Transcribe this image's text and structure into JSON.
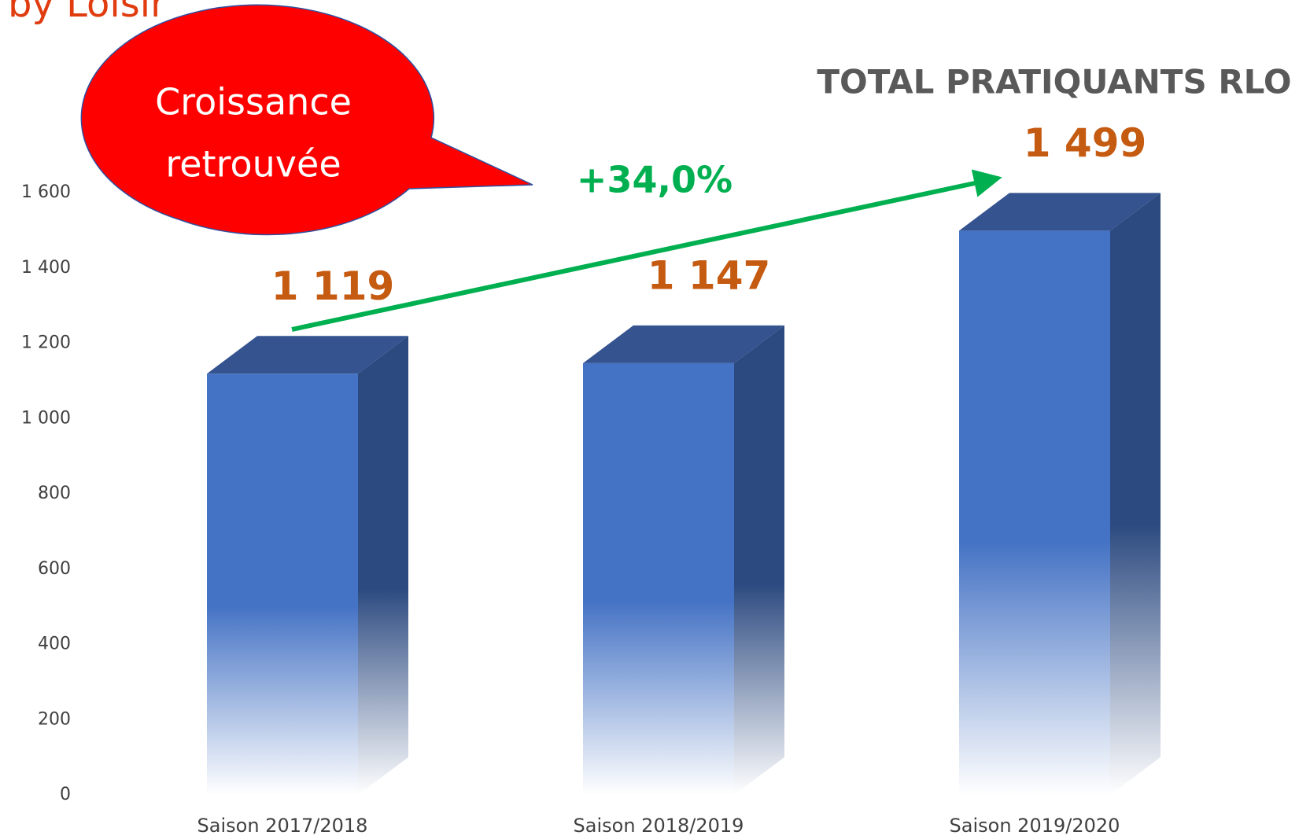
{
  "chart_data": {
    "type": "bar",
    "page_heading": "by Loisir",
    "title": "TOTAL PRATIQUANTS RLO",
    "categories": [
      "Saison 2017/2018",
      "Saison 2018/2019",
      "Saison 2019/2020"
    ],
    "values": [
      1119,
      1147,
      1499
    ],
    "value_labels": [
      "1 119",
      "1 147",
      "1 499"
    ],
    "color": "#4472c4",
    "ylim": [
      0,
      1600
    ],
    "yticks": [
      0,
      200,
      400,
      600,
      800,
      {
        "value": 1000,
        "label": "1 000"
      },
      {
        "value": 1200,
        "label": "1 200"
      },
      {
        "value": 1400,
        "label": "1 400"
      },
      {
        "value": 1600,
        "label": "1 600"
      }
    ],
    "growth_label": "+34,0%",
    "bubble_lines": [
      "Croissance",
      "retrouvée"
    ]
  }
}
